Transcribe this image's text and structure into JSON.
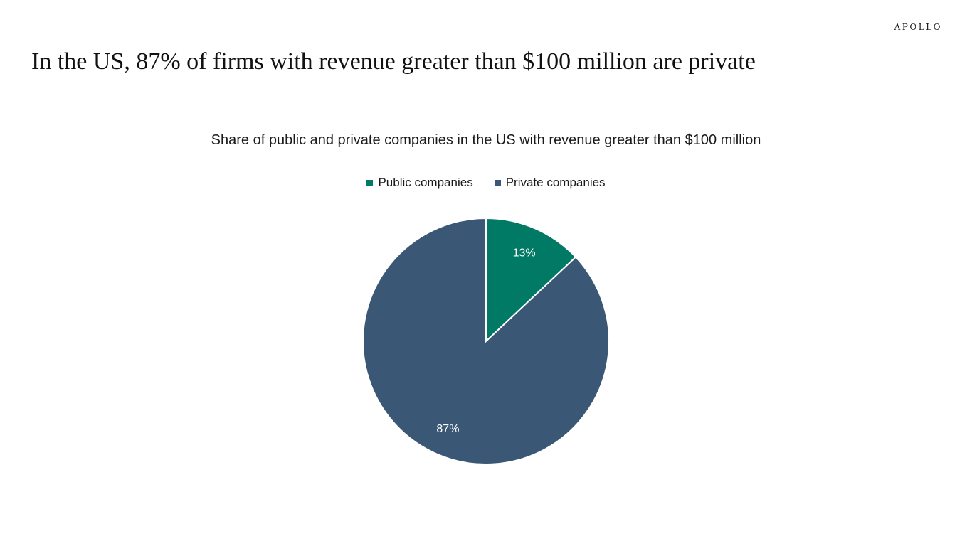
{
  "brand": "APOLLO",
  "headline": "In the US, 87% of firms with revenue greater than $100 million are private",
  "chart_data": {
    "type": "pie",
    "title": "Share of public and private companies in the US with revenue greater than $100 million",
    "legend_position": "top-center",
    "categories": [
      "Public companies",
      "Private companies"
    ],
    "values": [
      13,
      87
    ],
    "labels": [
      "13%",
      "87%"
    ],
    "colors": [
      "#007a64",
      "#3a5875"
    ]
  }
}
